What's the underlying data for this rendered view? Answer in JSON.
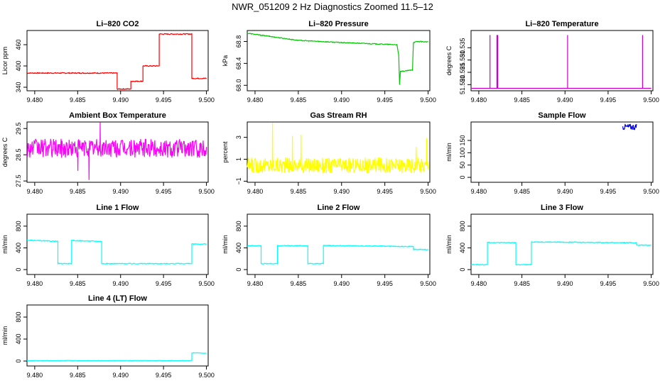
{
  "page_title": "NWR_051209  2 Hz Diagnostics Zoomed 11.5–12",
  "chart_data": [
    {
      "type": "line",
      "title": "Li–820 CO2",
      "ylabel": "Licor ppm",
      "xlabel": "",
      "xlim": [
        9.4791,
        9.5002
      ],
      "ylim": [
        330,
        500
      ],
      "x_ticks": [
        9.48,
        9.485,
        9.49,
        9.495,
        9.5
      ],
      "x_tick_labels": [
        "9.480",
        "9.485",
        "9.490",
        "9.495",
        "9.500"
      ],
      "y_ticks": [
        340,
        400,
        460
      ],
      "y_tick_labels": [
        "340",
        "400",
        "460"
      ],
      "series": [
        {
          "name": "CO2",
          "color": "#ff0000",
          "noise": 1.5,
          "x": [
            9.4791,
            9.4896,
            9.4896,
            9.4912,
            9.4912,
            9.4926,
            9.4926,
            9.4945,
            9.4945,
            9.4983,
            9.4983,
            9.5
          ],
          "y": [
            380,
            380,
            335,
            335,
            357,
            357,
            400,
            400,
            490,
            490,
            365,
            365
          ]
        }
      ]
    },
    {
      "type": "line",
      "title": "Li–820 Pressure",
      "ylabel": "kPa",
      "xlabel": "",
      "xlim": [
        9.4791,
        9.5002
      ],
      "ylim": [
        67.9,
        69.0
      ],
      "x_ticks": [
        9.48,
        9.485,
        9.49,
        9.495,
        9.5
      ],
      "x_tick_labels": [
        "9.480",
        "9.485",
        "9.490",
        "9.495",
        "9.500"
      ],
      "y_ticks": [
        68.0,
        68.4,
        68.8
      ],
      "y_tick_labels": [
        "68.0",
        "68.4",
        "68.8"
      ],
      "series": [
        {
          "name": "Pressure",
          "color": "#00c800",
          "noise": 0.008,
          "x": [
            9.4791,
            9.485,
            9.49,
            9.4964,
            9.4966,
            9.4967,
            9.4968,
            9.4982,
            9.4983,
            9.4988,
            9.5
          ],
          "y": [
            68.95,
            68.82,
            68.78,
            68.74,
            68.55,
            68.02,
            68.25,
            68.28,
            68.78,
            68.8,
            68.79
          ]
        }
      ]
    },
    {
      "type": "line",
      "title": "Li–820 Temperature",
      "ylabel": "degrees C",
      "xlabel": "",
      "xlim": [
        9.4791,
        9.5002
      ],
      "ylim": [
        51.5175,
        51.542
      ],
      "x_ticks": [
        9.48,
        9.485,
        9.49,
        9.495,
        9.5
      ],
      "x_tick_labels": [
        "9.480",
        "9.485",
        "9.490",
        "9.495",
        "9.500"
      ],
      "y_ticks": [
        51.52,
        51.525,
        51.53,
        51.535
      ],
      "y_tick_labels": [
        "51.520",
        "51.525",
        "51.530",
        "51.535"
      ],
      "series": [
        {
          "name": "Temperature",
          "color": "#cc00cc",
          "noise": 0,
          "x": [
            9.4791,
            9.4813,
            9.4813,
            9.4813,
            9.4821,
            9.4821,
            9.4821,
            9.4822,
            9.4822,
            9.4822,
            9.4903,
            9.4903,
            9.4903,
            9.499,
            9.499,
            9.499,
            9.5
          ],
          "y": [
            51.5185,
            51.5185,
            51.54,
            51.5185,
            51.5185,
            51.54,
            51.5185,
            51.5185,
            51.54,
            51.5185,
            51.5185,
            51.54,
            51.5185,
            51.5185,
            51.54,
            51.5185,
            51.5185
          ]
        }
      ]
    },
    {
      "type": "line",
      "title": "Ambient Box Temperature",
      "ylabel": "degrees C",
      "xlabel": "",
      "xlim": [
        9.4791,
        9.5002
      ],
      "ylim": [
        27.45,
        29.75
      ],
      "x_ticks": [
        9.48,
        9.485,
        9.49,
        9.495,
        9.5
      ],
      "x_tick_labels": [
        "9.480",
        "9.485",
        "9.490",
        "9.495",
        "9.500"
      ],
      "y_ticks": [
        27.5,
        28.5,
        29.5
      ],
      "y_tick_labels": [
        "27.5",
        "28.5",
        "29.5"
      ],
      "series": [
        {
          "name": "Ambient",
          "color": "#ff00ff",
          "noise": 0.35,
          "spikes_x": [
            9.4863,
            9.4876,
            9.485
          ],
          "spikes_y": [
            27.55,
            29.72,
            27.9
          ],
          "x": [
            9.4791,
            9.5
          ],
          "y": [
            28.75,
            28.75
          ]
        }
      ]
    },
    {
      "type": "line",
      "title": "Gas Stream RH",
      "ylabel": "percent",
      "xlabel": "",
      "xlim": [
        9.4791,
        9.5002
      ],
      "ylim": [
        -1.1,
        4.4
      ],
      "x_ticks": [
        9.48,
        9.485,
        9.49,
        9.495,
        9.5
      ],
      "x_tick_labels": [
        "9.480",
        "9.485",
        "9.490",
        "9.495",
        "9.500"
      ],
      "y_ticks": [
        -1,
        1,
        3
      ],
      "y_tick_labels": [
        "−1",
        "1",
        "3"
      ],
      "series": [
        {
          "name": "RH",
          "color": "#ffff00",
          "noise": 0.7,
          "spikes_x": [
            9.482,
            9.4843,
            9.4853,
            9.4986,
            9.4998
          ],
          "spikes_y": [
            4.3,
            3.1,
            3.2,
            2.1,
            2.9
          ],
          "x": [
            9.4791,
            9.5
          ],
          "y": [
            0.45,
            0.45
          ]
        }
      ]
    },
    {
      "type": "line",
      "title": "Sample Flow",
      "ylabel": "ml/min",
      "xlabel": "",
      "xlim": [
        9.4791,
        9.5002
      ],
      "ylim": [
        -20,
        225
      ],
      "x_ticks": [
        9.48,
        9.485,
        9.49,
        9.495,
        9.5
      ],
      "x_tick_labels": [
        "9.480",
        "9.485",
        "9.490",
        "9.495",
        "9.500"
      ],
      "y_ticks": [
        0,
        50,
        100,
        150
      ],
      "y_tick_labels": [
        "0",
        "50",
        "100",
        "150"
      ],
      "series": [
        {
          "name": "Sample Flow",
          "color": "#0000ff",
          "noise": 12,
          "x": [
            9.4967,
            9.4983
          ],
          "y": [
            205,
            205
          ]
        }
      ]
    },
    {
      "type": "line",
      "title": "Line 1 Flow",
      "ylabel": "ml/min",
      "xlabel": "",
      "xlim": [
        9.4791,
        9.5002
      ],
      "ylim": [
        -90,
        1020
      ],
      "x_ticks": [
        9.48,
        9.485,
        9.49,
        9.495,
        9.5
      ],
      "x_tick_labels": [
        "9.480",
        "9.485",
        "9.490",
        "9.495",
        "9.500"
      ],
      "y_ticks": [
        0,
        400,
        800
      ],
      "y_tick_labels": [
        "0",
        "400",
        "800"
      ],
      "series": [
        {
          "name": "Line 1",
          "color": "#00ffff",
          "noise": 8,
          "x": [
            9.4791,
            9.4827,
            9.4827,
            9.4843,
            9.4843,
            9.4878,
            9.4878,
            9.4983,
            9.4983,
            9.5
          ],
          "y": [
            540,
            520,
            110,
            110,
            535,
            520,
            110,
            110,
            470,
            470
          ]
        }
      ]
    },
    {
      "type": "line",
      "title": "Line 2 Flow",
      "ylabel": "ml/min",
      "xlabel": "",
      "xlim": [
        9.4791,
        9.5002
      ],
      "ylim": [
        -90,
        1020
      ],
      "x_ticks": [
        9.48,
        9.485,
        9.49,
        9.495,
        9.5
      ],
      "x_tick_labels": [
        "9.480",
        "9.485",
        "9.490",
        "9.495",
        "9.500"
      ],
      "y_ticks": [
        0,
        400,
        800
      ],
      "y_tick_labels": [
        "0",
        "400",
        "800"
      ],
      "series": [
        {
          "name": "Line 2",
          "color": "#00ffff",
          "noise": 8,
          "x": [
            9.4791,
            9.4807,
            9.4807,
            9.4826,
            9.4826,
            9.4861,
            9.4861,
            9.4879,
            9.4879,
            9.4983,
            9.4983,
            9.5
          ],
          "y": [
            440,
            440,
            110,
            110,
            440,
            440,
            110,
            110,
            445,
            425,
            370,
            370
          ]
        }
      ]
    },
    {
      "type": "line",
      "title": "Line 3 Flow",
      "ylabel": "ml/min",
      "xlabel": "",
      "xlim": [
        9.4791,
        9.5002
      ],
      "ylim": [
        -90,
        1020
      ],
      "x_ticks": [
        9.48,
        9.485,
        9.49,
        9.495,
        9.5
      ],
      "x_tick_labels": [
        "9.480",
        "9.485",
        "9.490",
        "9.495",
        "9.500"
      ],
      "y_ticks": [
        0,
        400,
        800
      ],
      "y_tick_labels": [
        "0",
        "400",
        "800"
      ],
      "series": [
        {
          "name": "Line 3",
          "color": "#00ffff",
          "noise": 8,
          "x": [
            9.4791,
            9.481,
            9.481,
            9.4843,
            9.4843,
            9.4861,
            9.4861,
            9.4983,
            9.4983,
            9.5
          ],
          "y": [
            90,
            90,
            500,
            495,
            90,
            90,
            510,
            495,
            450,
            450
          ]
        }
      ]
    },
    {
      "type": "line",
      "title": "Line 4 (LT) Flow",
      "ylabel": "ml/min",
      "xlabel": "",
      "xlim": [
        9.4791,
        9.5002
      ],
      "ylim": [
        -90,
        1020
      ],
      "x_ticks": [
        9.48,
        9.485,
        9.49,
        9.495,
        9.5
      ],
      "x_tick_labels": [
        "9.480",
        "9.485",
        "9.490",
        "9.495",
        "9.500"
      ],
      "y_ticks": [
        0,
        400,
        800
      ],
      "y_tick_labels": [
        "0",
        "400",
        "800"
      ],
      "series": [
        {
          "name": "Line 4",
          "color": "#00ffff",
          "noise": 4,
          "x": [
            9.4791,
            9.4983,
            9.4983,
            9.4985,
            9.5
          ],
          "y": [
            8,
            8,
            140,
            150,
            140
          ]
        }
      ]
    }
  ]
}
